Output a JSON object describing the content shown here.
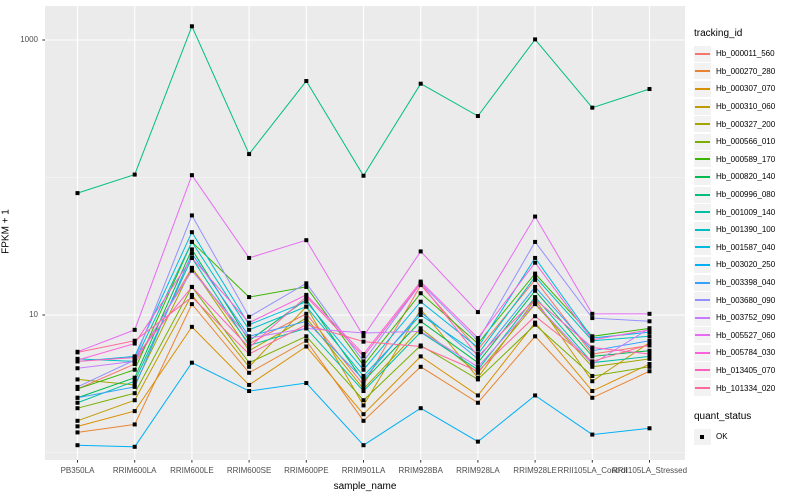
{
  "figure": {
    "background": "#ffffff",
    "panel_background": "#ebebeb",
    "major_grid_color": "#ffffff",
    "minor_grid_color": "#f5f5f5",
    "axis_text_color": "#4d4d4d",
    "tick_color": "#333333",
    "point_color": "#000000"
  },
  "y_axis": {
    "title": "FPKM + 1",
    "tick_labels": [
      "1000",
      "10"
    ]
  },
  "x_axis": {
    "title": "sample_name"
  },
  "legend": {
    "title": "tracking_id",
    "quant": {
      "title": "quant_status",
      "ok_label": "OK",
      "marker_color": "#000000"
    }
  },
  "chart_data": {
    "type": "line",
    "scale": "log10",
    "title": "",
    "xlabel": "sample_name",
    "ylabel": "FPKM + 1",
    "legend_position": "right",
    "grid": true,
    "major_breaks": [
      10,
      1000
    ],
    "minor_breaks": [
      1,
      100
    ],
    "ylim_log10": [
      -0.05,
      3.25
    ],
    "categories": [
      "PB350LA",
      "RRIM600LA",
      "RRIM600LE",
      "RRIM600SE",
      "RRIM600PE",
      "RRIM901LA",
      "RRIM928BA",
      "RRIM928LA",
      "RRIM928LE",
      "RRII105LA_Control",
      "RRII105LA_Stressed"
    ],
    "point_marker": "square",
    "series": [
      {
        "name": "Hb_000011_560",
        "color": "#F8766D",
        "values": [
          2.9,
          4.4,
          22,
          6.2,
          10.2,
          3.1,
          16.5,
          5.6,
          18,
          5.2,
          6.0
        ]
      },
      {
        "name": "Hb_000270_280",
        "color": "#EA8331",
        "values": [
          1.4,
          1.6,
          12,
          3.8,
          6.5,
          1.7,
          4.2,
          2.3,
          7.0,
          2.5,
          3.9
        ]
      },
      {
        "name": "Hb_000307_070",
        "color": "#D89000",
        "values": [
          1.55,
          2.0,
          8.2,
          3.1,
          5.9,
          1.9,
          5.0,
          2.6,
          8.8,
          2.8,
          4.4
        ]
      },
      {
        "name": "Hb_000310_060",
        "color": "#C09B00",
        "values": [
          1.7,
          2.4,
          14,
          4.2,
          11.5,
          2.2,
          11.0,
          3.5,
          13,
          3.3,
          6.3
        ]
      },
      {
        "name": "Hb_000327_200",
        "color": "#A3A500",
        "values": [
          3.4,
          3.1,
          22,
          5.5,
          9.5,
          2.9,
          8.0,
          3.8,
          12,
          4.2,
          4.8
        ]
      },
      {
        "name": "Hb_000566_010",
        "color": "#7CAE00",
        "values": [
          2.1,
          2.7,
          16,
          4.5,
          7.0,
          2.4,
          6.0,
          3.4,
          8.5,
          3.6,
          4.2
        ]
      },
      {
        "name": "Hb_000589_170",
        "color": "#39B600",
        "values": [
          2.9,
          4.0,
          34,
          13.5,
          16,
          4.3,
          14.4,
          6.2,
          20,
          7.0,
          8.0
        ]
      },
      {
        "name": "Hb_000820_140",
        "color": "#00BB4E",
        "values": [
          2.5,
          3.5,
          30,
          6.5,
          13,
          3.3,
          9.0,
          4.5,
          15,
          5.0,
          5.5
        ]
      },
      {
        "name": "Hb_000996_080",
        "color": "#00BF7D",
        "values": [
          77,
          105,
          1258,
          148,
          503,
          103,
          481,
          280,
          1010,
          322,
          440
        ]
      },
      {
        "name": "Hb_001009_140",
        "color": "#00C1A3",
        "values": [
          2.3,
          3.3,
          26,
          6.0,
          8.0,
          2.8,
          7.5,
          4.0,
          13.5,
          4.5,
          5.0
        ]
      },
      {
        "name": "Hb_001390_100",
        "color": "#00BFC4",
        "values": [
          4.8,
          4.6,
          34,
          7.8,
          11.5,
          3.6,
          10,
          5.2,
          19,
          6.5,
          7.0
        ]
      },
      {
        "name": "Hb_001587_040",
        "color": "#00BAE0",
        "values": [
          4.6,
          5.0,
          40,
          8.5,
          12.5,
          4.0,
          12.5,
          5.8,
          26,
          6.8,
          7.5
        ]
      },
      {
        "name": "Hb_003020_250",
        "color": "#00B0F6",
        "values": [
          1.13,
          1.1,
          4.5,
          2.8,
          3.2,
          1.13,
          2.1,
          1.2,
          2.6,
          1.35,
          1.5
        ]
      },
      {
        "name": "Hb_003398_040",
        "color": "#35A2FF",
        "values": [
          2.5,
          3.0,
          28,
          7.0,
          9.0,
          3.4,
          10.5,
          4.8,
          16,
          5.5,
          6.5
        ]
      },
      {
        "name": "Hb_003680_090",
        "color": "#9590FF",
        "values": [
          3.0,
          4.7,
          53,
          9.7,
          17,
          4.6,
          17,
          6.5,
          34,
          9.5,
          9.0
        ]
      },
      {
        "name": "Hb_003752_090",
        "color": "#C77CFF",
        "values": [
          4.1,
          4.6,
          21,
          6.8,
          8.0,
          7.4,
          7.6,
          4.2,
          12.2,
          4.4,
          8.0
        ]
      },
      {
        "name": "Hb_005527_060",
        "color": "#E76BF3",
        "values": [
          5.4,
          7.8,
          104,
          26,
          35,
          7.0,
          29,
          10.5,
          52,
          10.2,
          10.2
        ]
      },
      {
        "name": "Hb_005784_030",
        "color": "#FA62DB",
        "values": [
          4.7,
          6.2,
          26,
          8.8,
          14,
          5.2,
          17.5,
          6.8,
          24,
          6.6,
          7.8
        ]
      },
      {
        "name": "Hb_013405_070",
        "color": "#FF62BC",
        "values": [
          4.6,
          4.9,
          16,
          5.8,
          13.6,
          5.0,
          17,
          5.0,
          13,
          5.8,
          5.2
        ]
      },
      {
        "name": "Hb_101334_020",
        "color": "#FF6A98",
        "values": [
          5.35,
          6.5,
          13.5,
          5.2,
          8.5,
          6.4,
          5.9,
          3.9,
          9.8,
          4.6,
          6.1
        ]
      }
    ],
    "y_tick_values": [
      1000,
      10
    ]
  }
}
